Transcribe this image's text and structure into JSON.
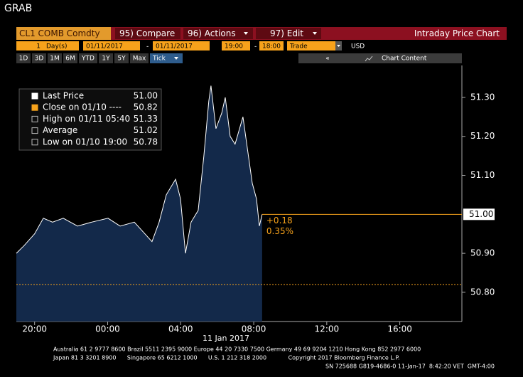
{
  "header": {
    "title": "GRAB"
  },
  "toolbar": {
    "ticker": "CL1 COMB Comdty",
    "buttons": [
      "95) Compare",
      "96) Actions",
      "97) Edit"
    ],
    "chart_name": "Intraday Price Chart"
  },
  "range": {
    "count": "1",
    "unit": "Day(s)",
    "start_date": "01/11/2017",
    "end_date": "01/11/2017",
    "start_time": "19:00",
    "end_time": "18:00",
    "separator": "-",
    "field": "Trade",
    "currency": "USD"
  },
  "periods": [
    "1D",
    "3D",
    "1M",
    "6M",
    "YTD",
    "1Y",
    "5Y",
    "Max"
  ],
  "tick_mode": "Tick",
  "chart_content": "Chart Content",
  "chart_data": {
    "type": "area",
    "xlabel": "11 Jan 2017",
    "x": [
      0,
      0.43,
      1.0,
      1.48,
      1.98,
      2.57,
      3.35,
      4.12,
      5.02,
      5.68,
      6.46,
      7.04,
      7.43,
      7.82,
      8.21,
      8.72,
      8.99,
      9.26,
      9.57,
      9.96,
      10.27,
      10.54,
      10.66,
      10.93,
      11.25,
      11.44,
      11.71,
      11.98,
      12.41,
      12.68,
      12.92,
      13.15,
      13.31,
      13.46
    ],
    "series": [
      {
        "color": "#ffffff",
        "fill": "#13294a",
        "values": [
          50.9,
          50.92,
          50.95,
          50.99,
          50.98,
          50.99,
          50.97,
          50.98,
          50.99,
          50.97,
          50.98,
          50.95,
          50.93,
          50.98,
          51.05,
          51.09,
          51.04,
          50.9,
          50.98,
          51.01,
          51.15,
          51.29,
          51.33,
          51.22,
          51.26,
          51.3,
          51.2,
          51.18,
          51.25,
          51.16,
          51.08,
          51.04,
          50.97,
          51.0
        ]
      }
    ],
    "xlim": [
      0,
      24.4
    ],
    "xticks": [
      {
        "value": 1,
        "label": "20:00"
      },
      {
        "value": 5,
        "label": "00:00"
      },
      {
        "value": 9,
        "label": "04:00"
      },
      {
        "value": 13,
        "label": "08:00"
      },
      {
        "value": 17,
        "label": "12:00"
      },
      {
        "value": 21,
        "label": "16:00"
      }
    ],
    "ylim": [
      50.725,
      51.382
    ],
    "yticks": [
      {
        "value": 50.8,
        "label": "50.80"
      },
      {
        "value": 50.9,
        "label": "50.90"
      },
      {
        "value": 51.1,
        "label": "51.10"
      },
      {
        "value": 51.2,
        "label": "51.20"
      },
      {
        "value": 51.3,
        "label": "51.30"
      }
    ],
    "last_price": {
      "value": 51,
      "label": "51.00"
    },
    "close": {
      "value": 50.82,
      "color": "#f7a21b"
    },
    "change": "+0.18",
    "change_pct": "0.35%",
    "legend": [
      {
        "label": "Last Price",
        "value": "51.00"
      },
      {
        "label": "Close on 01/10 ----",
        "value": "50.82"
      },
      {
        "label": "High on 01/11 05:40",
        "value": "51.33"
      },
      {
        "label": "Average",
        "value": "51.02"
      },
      {
        "label": "Low on 01/10 19:00",
        "value": "50.78"
      }
    ]
  },
  "footer": {
    "lines": [
      "Australia 61 2 9777 8600 Brazil 5511 2395 9000 Europe 44 20 7330 7500 Germany 49 69 9204 1210 Hong Kong 852 2977 6000",
      "Japan 81 3 3201 8900      Singapore 65 6212 1000      U.S. 1 212 318 2000            Copyright 2017 Bloomberg Finance L.P.",
      "SN 725688 G819-4686-0 11-Jan-17  8:42:20 VET  GMT-4:00"
    ]
  }
}
